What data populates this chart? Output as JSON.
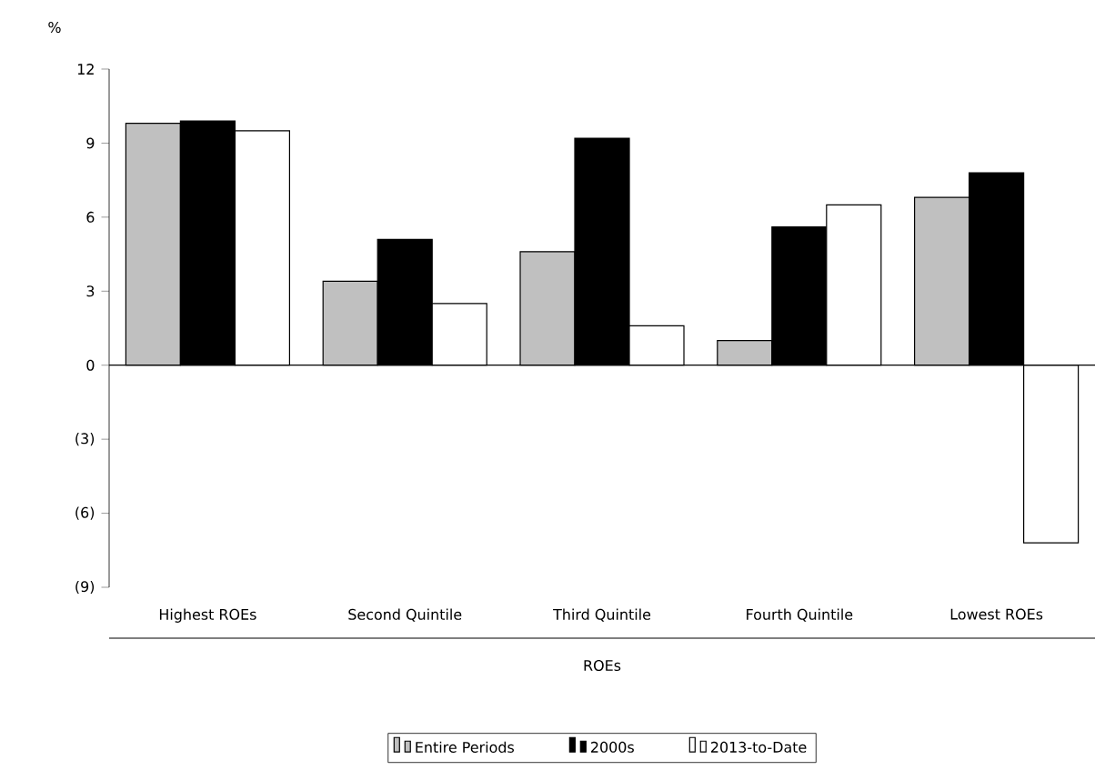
{
  "chart_data": {
    "type": "bar",
    "ylabel": "%",
    "xlabel": "ROEs",
    "categories": [
      "Highest ROEs",
      "Second Quintile",
      "Third Quintile",
      "Fourth Quintile",
      "Lowest ROEs"
    ],
    "series": [
      {
        "name": "Entire Periods",
        "color": "#c0c0c0",
        "values": [
          9.8,
          3.4,
          4.6,
          1.0,
          6.8
        ]
      },
      {
        "name": "2000s",
        "color": "#000000",
        "values": [
          9.9,
          5.1,
          9.2,
          5.6,
          7.8
        ]
      },
      {
        "name": "2013-to-Date",
        "color": "#ffffff",
        "values": [
          9.5,
          2.5,
          1.6,
          6.5,
          -7.2
        ]
      }
    ],
    "ylim": [
      -9,
      12
    ],
    "yticks": [
      {
        "value": -9,
        "label": "(9)"
      },
      {
        "value": -6,
        "label": "(6)"
      },
      {
        "value": -3,
        "label": "(3)"
      },
      0,
      3,
      6,
      9,
      12
    ],
    "legend": "bottom"
  }
}
